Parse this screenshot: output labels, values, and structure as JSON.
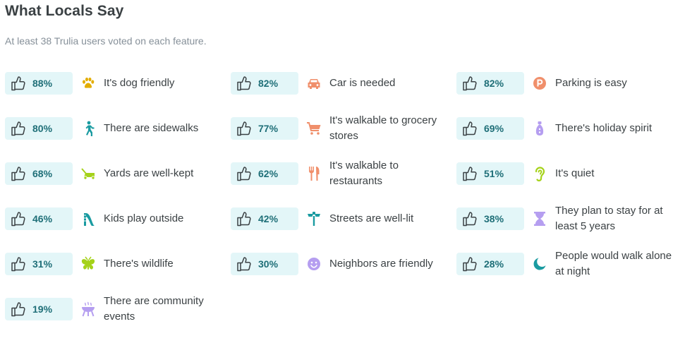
{
  "heading": "What Locals Say",
  "subheading": "At least 38 Trulia users voted on each feature.",
  "features": [
    {
      "pct": "88%",
      "label": "It's dog friendly",
      "icon": "paw-icon",
      "color": "#e3ad00"
    },
    {
      "pct": "82%",
      "label": "Car is needed",
      "icon": "car-icon",
      "color": "#f08f6b"
    },
    {
      "pct": "82%",
      "label": "Parking is easy",
      "icon": "parking-icon",
      "color": "#f08f6b"
    },
    {
      "pct": "80%",
      "label": "There are sidewalks",
      "icon": "pedestrian-icon",
      "color": "#1a9ba1"
    },
    {
      "pct": "77%",
      "label": "It's walkable to grocery stores",
      "icon": "shopping-cart-icon",
      "color": "#f08f6b"
    },
    {
      "pct": "69%",
      "label": "There's holiday spirit",
      "icon": "holiday-lights-icon",
      "color": "#b59ef0"
    },
    {
      "pct": "68%",
      "label": "Yards are well-kept",
      "icon": "lawnmower-icon",
      "color": "#a5d21a"
    },
    {
      "pct": "62%",
      "label": "It's walkable to restaurants",
      "icon": "fork-knife-icon",
      "color": "#f08f6b"
    },
    {
      "pct": "51%",
      "label": "It's quiet",
      "icon": "ear-icon",
      "color": "#a5d21a"
    },
    {
      "pct": "46%",
      "label": "Kids play outside",
      "icon": "slide-icon",
      "color": "#1a9ba1"
    },
    {
      "pct": "42%",
      "label": "Streets are well-lit",
      "icon": "streetlight-icon",
      "color": "#1a9ba1"
    },
    {
      "pct": "38%",
      "label": "They plan to stay for at least 5 years",
      "icon": "hourglass-icon",
      "color": "#b59ef0"
    },
    {
      "pct": "31%",
      "label": "There's wildlife",
      "icon": "butterfly-icon",
      "color": "#a5d21a"
    },
    {
      "pct": "30%",
      "label": "Neighbors are friendly",
      "icon": "smiley-icon",
      "color": "#b59ef0"
    },
    {
      "pct": "28%",
      "label": "People would walk alone at night",
      "icon": "moon-icon",
      "color": "#1a9ba1"
    },
    {
      "pct": "19%",
      "label": "There are community events",
      "icon": "grill-icon",
      "color": "#b59ef0"
    }
  ],
  "colors": {
    "pill_bg": "#e3f6f8",
    "percent_text": "#1f6f78",
    "thumb_stroke": "#3b4144"
  }
}
